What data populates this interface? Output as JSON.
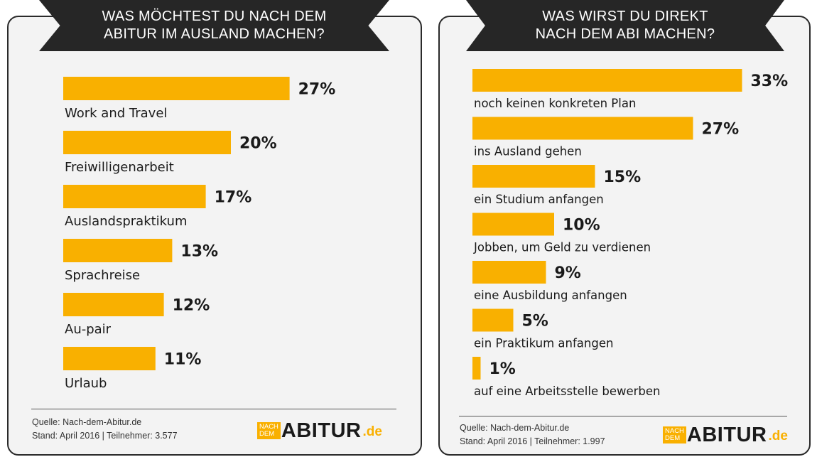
{
  "chart_data": [
    {
      "type": "bar",
      "orientation": "horizontal",
      "title": "WAS MÖCHTEST DU NACH DEM ABITUR IM AUSLAND MACHEN?",
      "title_lines": [
        "WAS MÖCHTEST DU NACH DEM",
        "ABITUR IM AUSLAND MACHEN?"
      ],
      "categories": [
        "Work and Travel",
        "Freiwilligenarbeit",
        "Auslandspraktikum",
        "Sprachreise",
        "Au-pair",
        "Urlaub"
      ],
      "values": [
        27,
        20,
        17,
        13,
        12,
        11
      ],
      "value_labels": [
        "27%",
        "20%",
        "17%",
        "13%",
        "12%",
        "11%"
      ],
      "unit": "%",
      "source": "Quelle: Nach-dem-Abitur.de",
      "stand": "Stand: April 2016 | Teilnehmer: 3.577"
    },
    {
      "type": "bar",
      "orientation": "horizontal",
      "title": "WAS WIRST DU DIREKT NACH DEM ABI MACHEN?",
      "title_lines": [
        "WAS WIRST DU DIREKT",
        "NACH DEM ABI MACHEN?"
      ],
      "categories": [
        "noch keinen konkreten Plan",
        "ins Ausland gehen",
        "ein Studium anfangen",
        "Jobben, um Geld zu verdienen",
        "eine Ausbildung anfangen",
        "ein Praktikum anfangen",
        "auf eine Arbeitsstelle bewerben"
      ],
      "values": [
        33,
        27,
        15,
        10,
        9,
        5,
        1
      ],
      "value_labels": [
        "33%",
        "27%",
        "15%",
        "10%",
        "9%",
        "5%",
        "1%"
      ],
      "unit": "%",
      "source": "Quelle: Nach-dem-Abitur.de",
      "stand": "Stand: April 2016 | Teilnehmer: 1.997"
    }
  ],
  "colors": {
    "bar": "#f9b000",
    "banner": "#262626",
    "card": "#f3f3f3",
    "text": "#1a1a1a"
  },
  "logo": {
    "small_top": "NACH",
    "small_bottom": "DEM",
    "main": "ABITUR",
    "tld": ".de"
  }
}
